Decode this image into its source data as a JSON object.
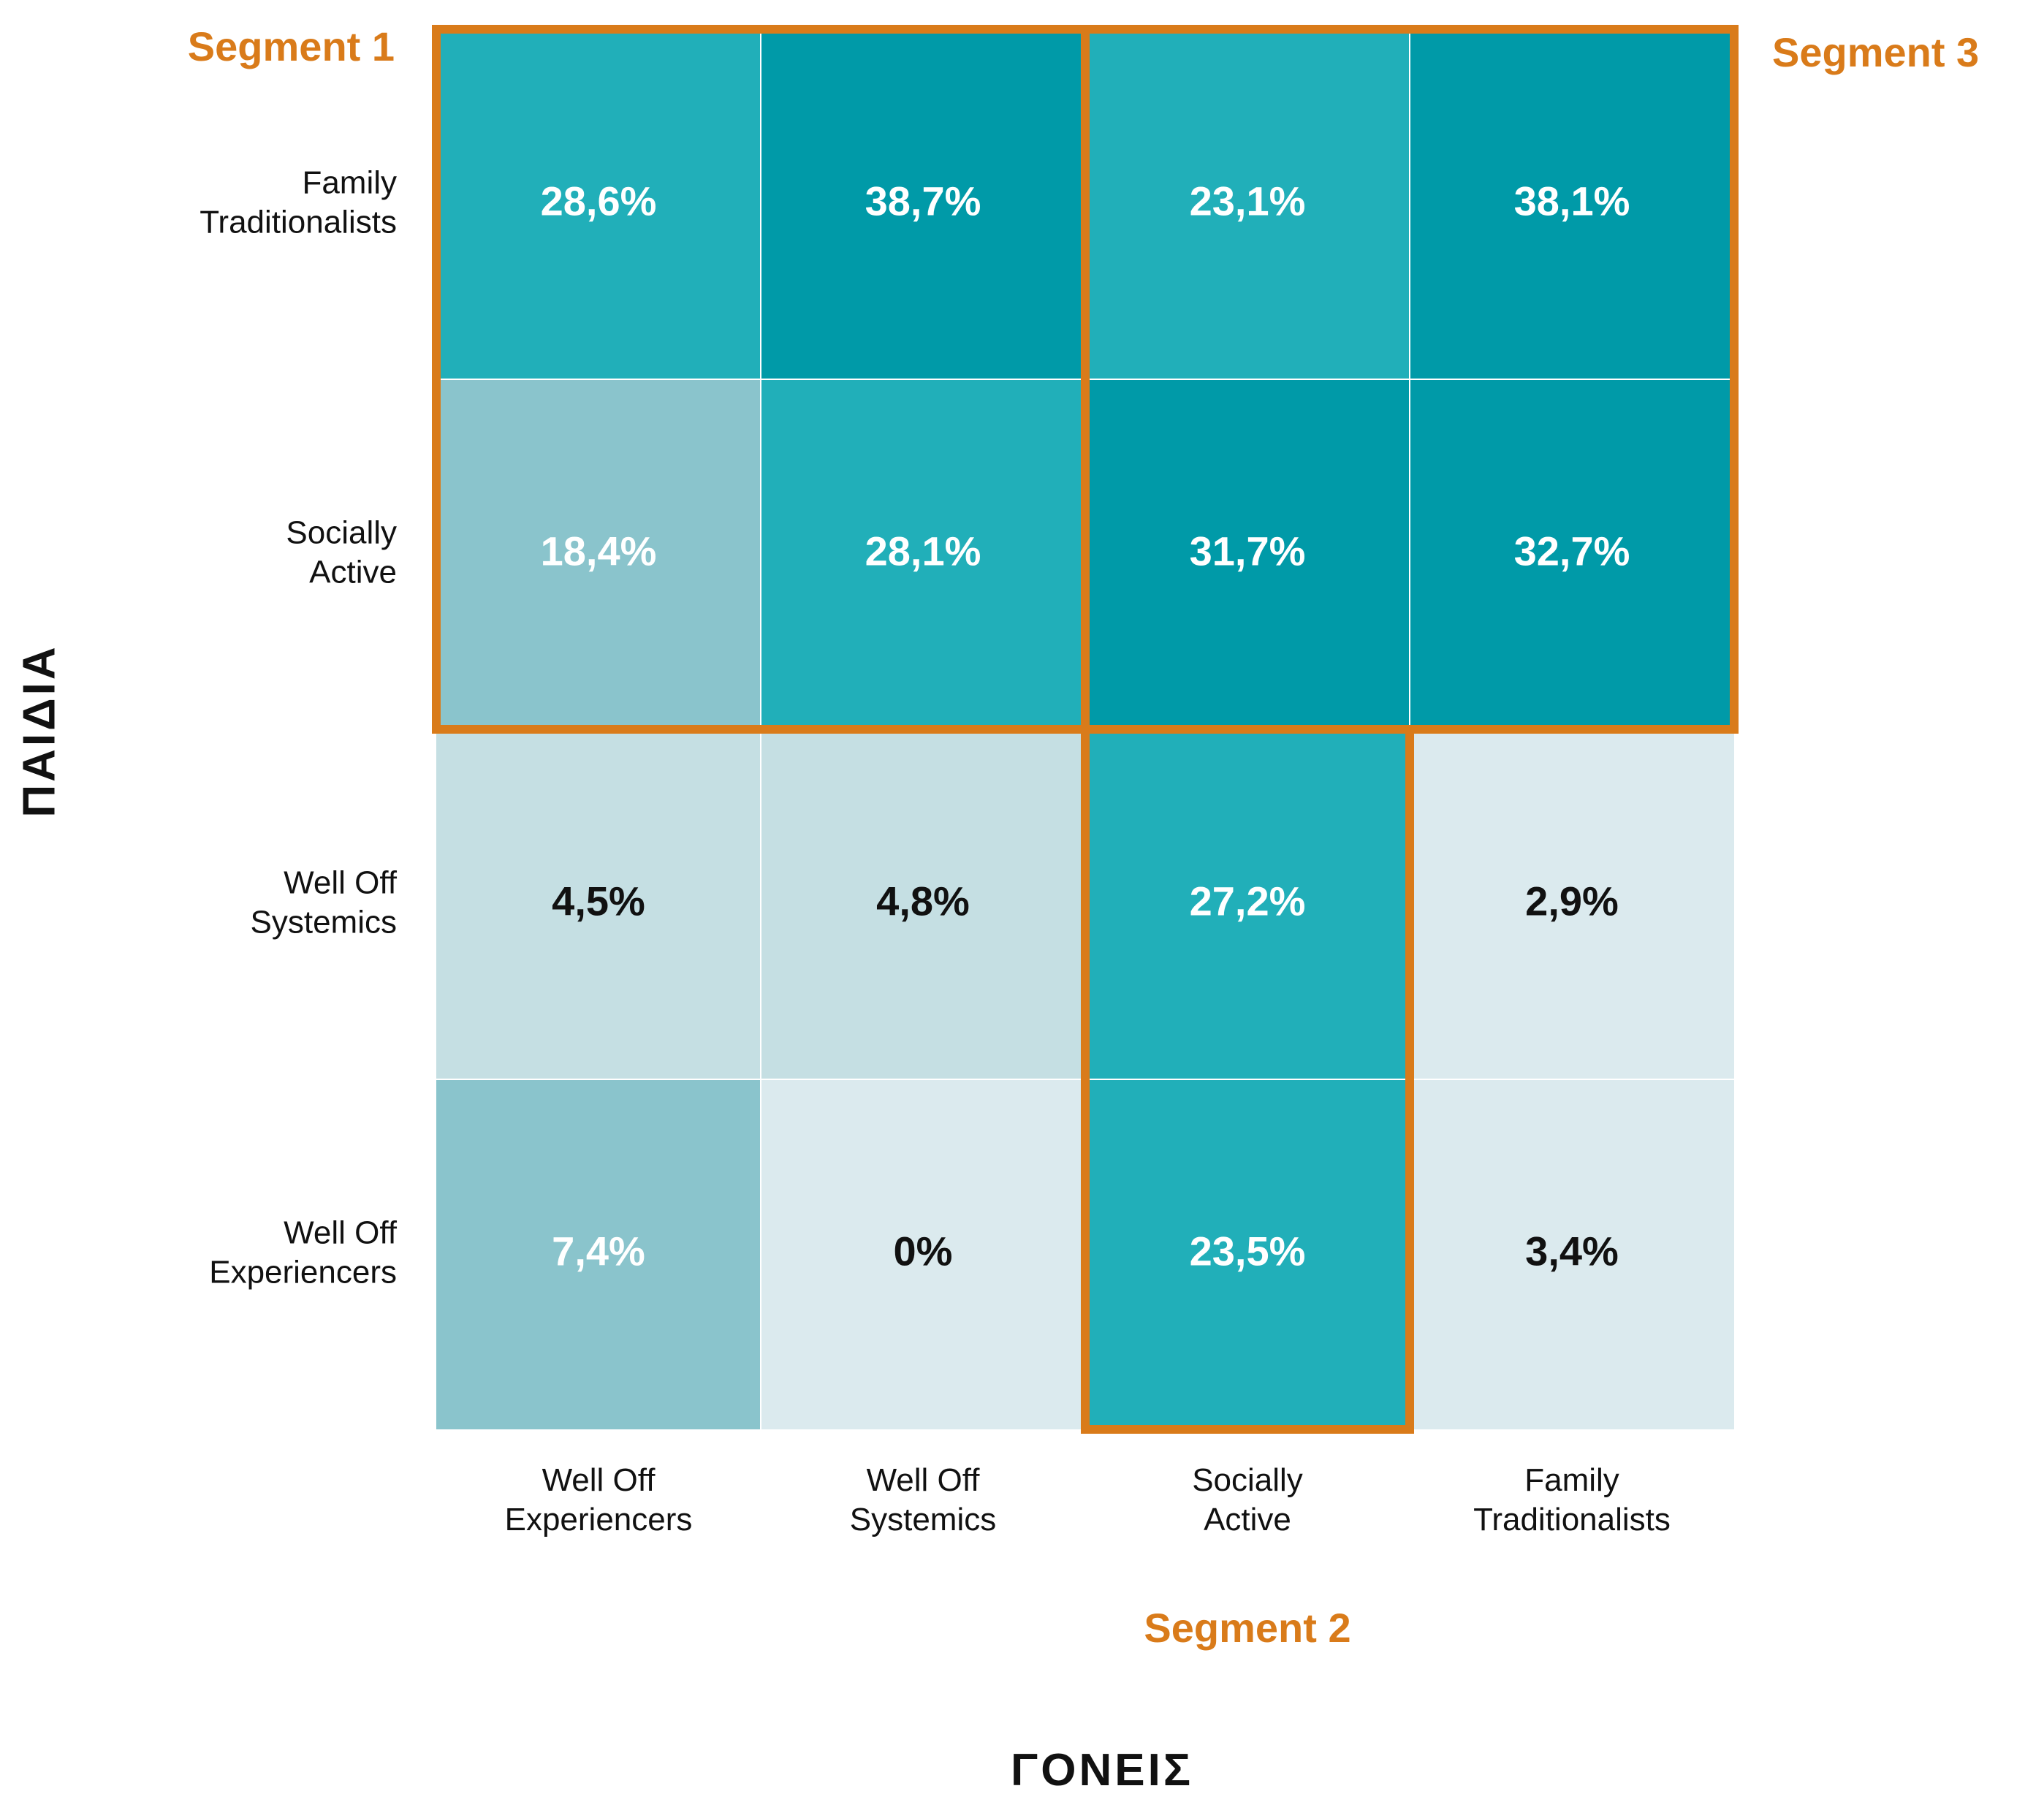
{
  "chart_data": {
    "type": "heatmap",
    "xlabel": "ΓΟΝΕΙΣ",
    "ylabel": "ΠΑΙΔΙΑ",
    "columns": [
      "Well Off Experiencers",
      "Well Off Systemics",
      "Socially Active",
      "Family Traditionalists"
    ],
    "rows": [
      "Family Traditionalists",
      "Socially Active",
      "Well Off Systemics",
      "Well Off Experiencers"
    ],
    "values": [
      [
        28.6,
        38.7,
        23.1,
        38.1
      ],
      [
        18.4,
        28.1,
        31.7,
        32.7
      ],
      [
        4.5,
        4.8,
        27.2,
        2.9
      ],
      [
        7.4,
        0,
        23.5,
        3.4
      ]
    ],
    "value_labels": [
      [
        "28,6%",
        "38,7%",
        "23,1%",
        "38,1%"
      ],
      [
        "18,4%",
        "28,1%",
        "31,7%",
        "32,7%"
      ],
      [
        "4,5%",
        "4,8%",
        "27,2%",
        "2,9%"
      ],
      [
        "7,4%",
        "0%",
        "23,5%",
        "3,4%"
      ]
    ],
    "segments": [
      {
        "name": "Segment 1",
        "rows": [
          0,
          1
        ],
        "columns": [
          0,
          1
        ]
      },
      {
        "name": "Segment 2",
        "rows": [
          2,
          3
        ],
        "columns": [
          2,
          2
        ]
      },
      {
        "name": "Segment 3",
        "rows": [
          0,
          1
        ],
        "columns": [
          2,
          3
        ]
      }
    ],
    "colors": {
      "darkest": "#009aa8",
      "dark": "#21afb9",
      "medium": "#8ac4cc",
      "light": "#c5dfe3",
      "lightest": "#dbeaee",
      "segment_outline": "#d97b1a",
      "text_light": "#ffffff",
      "text_dark": "#111111"
    },
    "cell_colors": [
      [
        "dark",
        "darkest",
        "dark",
        "darkest"
      ],
      [
        "medium",
        "dark",
        "darkest",
        "darkest"
      ],
      [
        "light",
        "light",
        "dark",
        "lightest"
      ],
      [
        "medium",
        "lightest",
        "dark",
        "lightest"
      ]
    ]
  }
}
